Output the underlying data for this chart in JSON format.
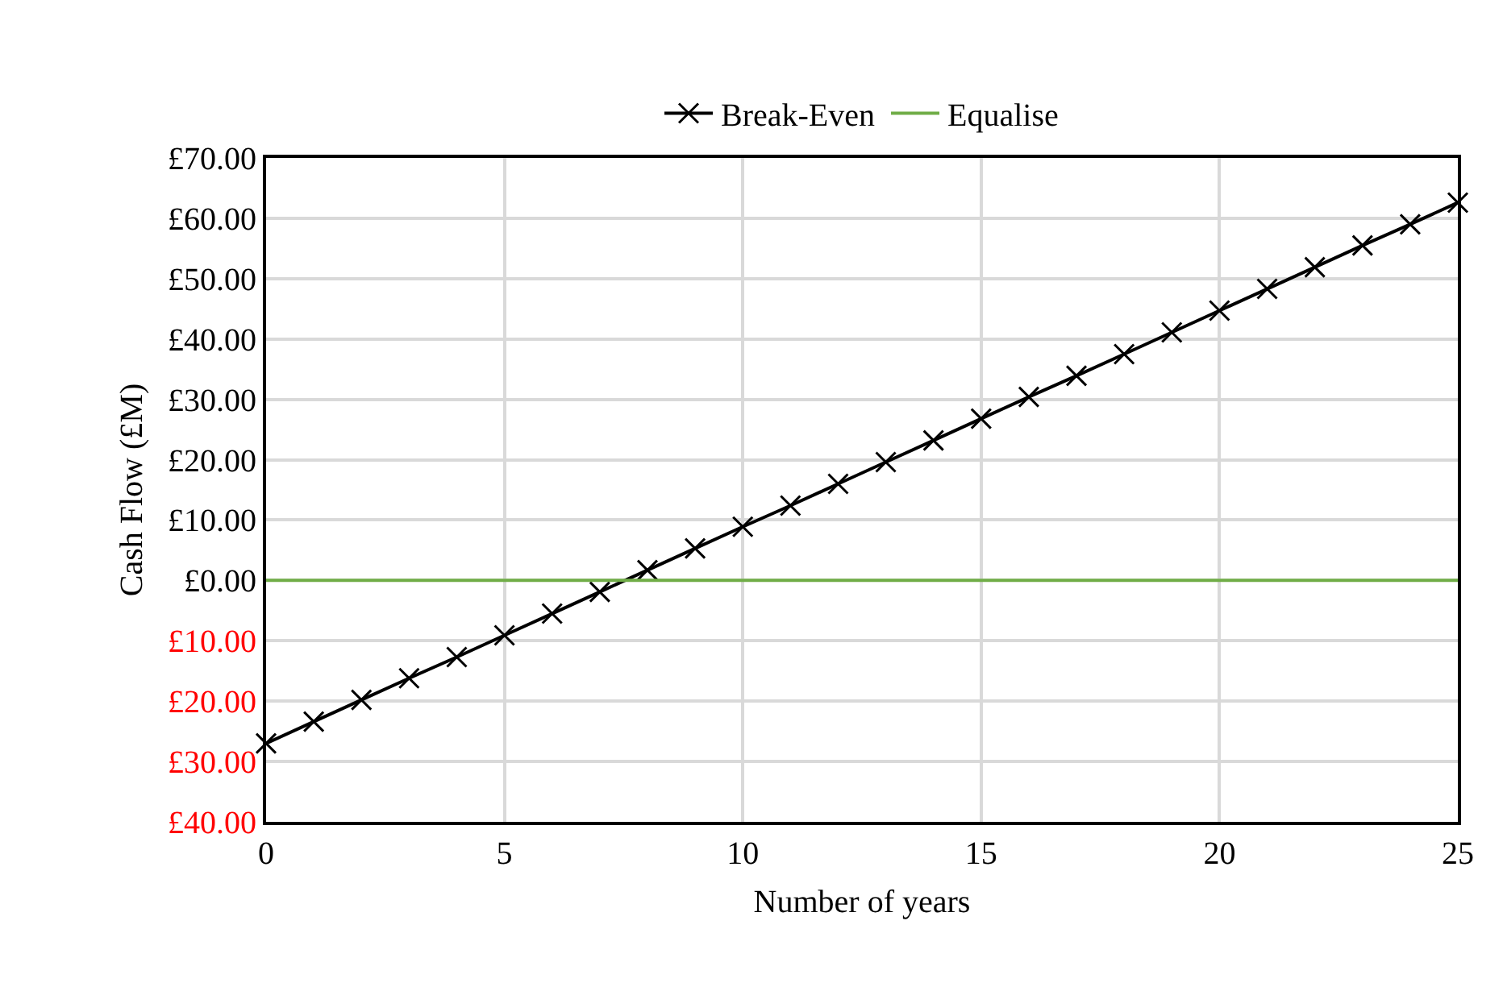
{
  "chart_data": {
    "type": "line",
    "xlabel": "Number of years",
    "ylabel": "Cash Flow (£M)",
    "x": [
      0,
      1,
      2,
      3,
      4,
      5,
      6,
      7,
      8,
      9,
      10,
      11,
      12,
      13,
      14,
      15,
      16,
      17,
      18,
      19,
      20,
      21,
      22,
      23,
      24,
      25
    ],
    "series": [
      {
        "name": "Break-Even",
        "color": "#000000",
        "marker": "cross",
        "values": [
          -27.0,
          -23.4,
          -19.8,
          -16.2,
          -12.7,
          -9.1,
          -5.5,
          -1.9,
          1.7,
          5.3,
          8.9,
          12.4,
          16.0,
          19.6,
          23.2,
          26.8,
          30.4,
          33.9,
          37.5,
          41.1,
          44.7,
          48.3,
          51.9,
          55.5,
          59.0,
          62.6
        ]
      },
      {
        "name": "Equalise",
        "color": "#70ad47",
        "marker": "none",
        "x": [
          0,
          25
        ],
        "values": [
          0,
          0
        ]
      }
    ],
    "xlim": [
      0,
      25
    ],
    "xticks": [
      0,
      5,
      10,
      15,
      20,
      25
    ],
    "ylim": [
      -40,
      70
    ],
    "yticks": [
      {
        "value": -40,
        "label": "£40.00"
      },
      {
        "value": -30,
        "label": "£30.00"
      },
      {
        "value": -20,
        "label": "£20.00"
      },
      {
        "value": -10,
        "label": "£10.00"
      },
      {
        "value": 0,
        "label": "£0.00"
      },
      {
        "value": 10,
        "label": "£10.00"
      },
      {
        "value": 20,
        "label": "£20.00"
      },
      {
        "value": 30,
        "label": "£30.00"
      },
      {
        "value": 40,
        "label": "£40.00"
      },
      {
        "value": 50,
        "label": "£50.00"
      },
      {
        "value": 60,
        "label": "£60.00"
      },
      {
        "value": 70,
        "label": "£70.00"
      }
    ],
    "grid": true,
    "legend": "top",
    "line_style": "solid"
  }
}
